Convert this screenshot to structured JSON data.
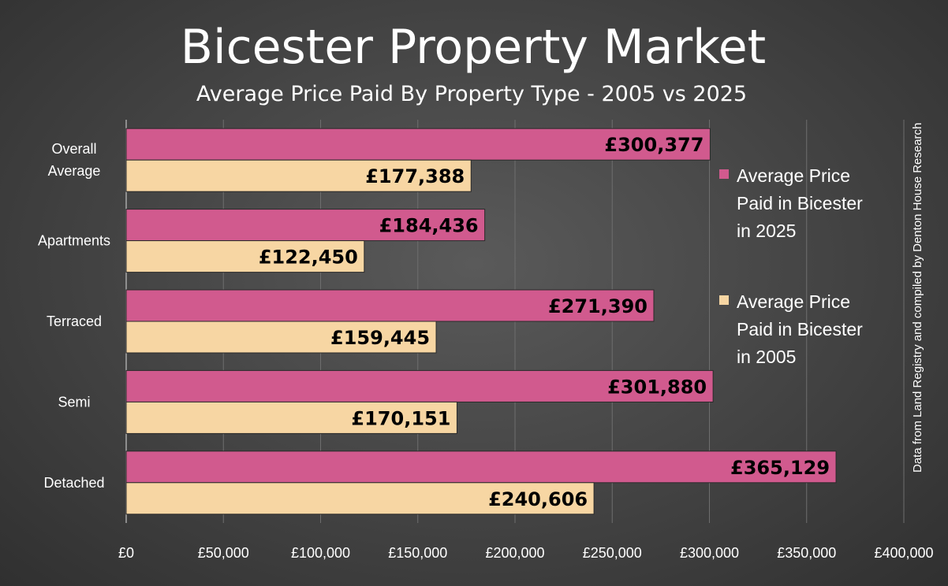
{
  "chart_data": {
    "type": "bar",
    "orientation": "horizontal",
    "title": "Bicester Property Market",
    "subtitle": "Average Price Paid By Property Type - 2005 vs 2025",
    "categories": [
      [
        "Overall",
        "Average"
      ],
      [
        "Apartments"
      ],
      [
        "Terraced"
      ],
      [
        "Semi"
      ],
      [
        "Detached"
      ]
    ],
    "series": [
      {
        "name": [
          "Average Price",
          "Paid in Bicester",
          "in 2025"
        ],
        "color": "#d15a8e",
        "values": [
          300377,
          184436,
          271390,
          301880,
          365129
        ],
        "labels": [
          "£300,377",
          "£184,436",
          "£271,390",
          "£301,880",
          "£365,129"
        ]
      },
      {
        "name": [
          "Average Price",
          "Paid in Bicester",
          "in 2005"
        ],
        "color": "#f7d6a3",
        "values": [
          177388,
          122450,
          159445,
          170151,
          240606
        ],
        "labels": [
          "£177,388",
          "£122,450",
          "£159,445",
          "£170,151",
          "£240,606"
        ]
      }
    ],
    "xlim": [
      0,
      400000
    ],
    "xticks": [
      0,
      50000,
      100000,
      150000,
      200000,
      250000,
      300000,
      350000,
      400000
    ],
    "xtick_labels": [
      "£0",
      "£50,000",
      "£100,000",
      "£150,000",
      "£200,000",
      "£250,000",
      "£300,000",
      "£350,000",
      "£400,000"
    ],
    "grid": true,
    "legend_position": "right",
    "source_note": "Data from Land Registry and compiled by Denton House Research"
  }
}
